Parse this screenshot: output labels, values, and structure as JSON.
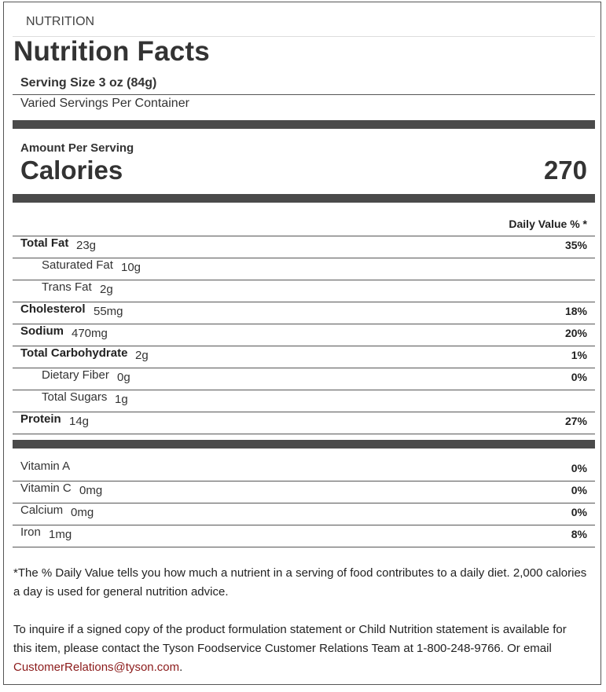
{
  "header": {
    "section_label": "NUTRITION",
    "title": "Nutrition Facts"
  },
  "serving": {
    "size": "Serving Size 3 oz (84g)",
    "per_container": "Varied Servings Per Container"
  },
  "calories": {
    "amount_label": "Amount Per Serving",
    "label": "Calories",
    "value": "270"
  },
  "daily_value_header": "Daily Value % *",
  "nutrients": [
    {
      "name": "Total Fat",
      "amount": "23g",
      "dv": "35%",
      "bold": true,
      "indent": false
    },
    {
      "name": "Saturated Fat",
      "amount": "10g",
      "dv": "",
      "bold": false,
      "indent": true
    },
    {
      "name": "Trans Fat",
      "amount": "2g",
      "dv": "",
      "bold": false,
      "indent": true
    },
    {
      "name": "Cholesterol",
      "amount": "55mg",
      "dv": "18%",
      "bold": true,
      "indent": false
    },
    {
      "name": "Sodium",
      "amount": "470mg",
      "dv": "20%",
      "bold": true,
      "indent": false
    },
    {
      "name": "Total Carbohydrate",
      "amount": "2g",
      "dv": "1%",
      "bold": true,
      "indent": false
    },
    {
      "name": "Dietary Fiber",
      "amount": "0g",
      "dv": "0%",
      "bold": false,
      "indent": true
    },
    {
      "name": "Total Sugars",
      "amount": "1g",
      "dv": "",
      "bold": false,
      "indent": true
    },
    {
      "name": "Protein",
      "amount": "14g",
      "dv": "27%",
      "bold": true,
      "indent": false
    }
  ],
  "vitamins": [
    {
      "name": "Vitamin A",
      "amount": "",
      "dv": "0%"
    },
    {
      "name": "Vitamin C",
      "amount": "0mg",
      "dv": "0%"
    },
    {
      "name": "Calcium",
      "amount": "0mg",
      "dv": "0%"
    },
    {
      "name": "Iron",
      "amount": "1mg",
      "dv": "8%"
    }
  ],
  "footnote": "*The % Daily Value tells you how much a nutrient in a serving of food contributes to a daily diet. 2,000 calories a day is used for general nutrition advice.",
  "inquiry": {
    "text": "To inquire if a signed copy of the product formulation statement or Child Nutrition statement is available for this item, please contact the Tyson Foodservice Customer Relations Team at 1-800-248-9766. Or email ",
    "email": "CustomerRelations@tyson.com",
    "end": "."
  },
  "colors": {
    "link": "#8b1a1a",
    "bar": "#4a4a4a",
    "text": "#333333"
  }
}
